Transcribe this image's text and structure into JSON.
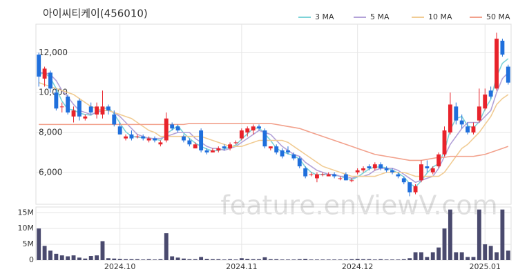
{
  "chart_data": {
    "type": "candlestick",
    "title": "아이씨티케이(456010)",
    "watermark": "feature.enViewV.com",
    "up_color": "#e8232b",
    "down_color": "#1f6fdc",
    "categories": [
      null,
      null,
      null,
      null,
      null,
      null,
      null,
      null,
      null,
      null,
      null,
      null,
      null,
      null,
      "2024.10",
      null,
      null,
      null,
      null,
      null,
      null,
      null,
      null,
      null,
      null,
      null,
      null,
      null,
      null,
      null,
      null,
      null,
      null,
      null,
      null,
      "2024.11",
      null,
      null,
      null,
      null,
      null,
      null,
      null,
      null,
      null,
      null,
      null,
      null,
      null,
      null,
      null,
      null,
      null,
      null,
      null,
      "2024.12",
      null,
      null,
      null,
      null,
      null,
      null,
      null,
      null,
      null,
      null,
      null,
      null,
      null,
      null,
      null,
      null,
      null,
      null,
      null,
      null,
      null,
      "2025.01",
      null,
      null,
      null,
      null
    ],
    "open": [
      11900,
      10700,
      11000,
      10000,
      9300,
      9800,
      8800,
      9600,
      8700,
      9300,
      8900,
      8900,
      9300,
      8900,
      8300,
      7700,
      7900,
      7800,
      7800,
      7600,
      7700,
      7400,
      7600,
      8400,
      8300,
      7800,
      7600,
      7200,
      8100,
      7100,
      7000,
      7100,
      7300,
      7200,
      7500,
      7700,
      8000,
      8100,
      8300,
      8100,
      7200,
      7300,
      7100,
      7100,
      6900,
      6700,
      6200,
      5900,
      5700,
      5900,
      5800,
      5900,
      5700,
      5900,
      5600,
      6000,
      6100,
      6300,
      6200,
      6400,
      6200,
      6100,
      5900,
      5700,
      5500,
      5000,
      5600,
      6300,
      6000,
      6300,
      6900,
      8000,
      9300,
      8600,
      8300,
      8000,
      8600,
      9200,
      10100,
      10200,
      12600,
      11300
    ],
    "high": [
      12000,
      11300,
      11100,
      10200,
      9500,
      9900,
      9300,
      9700,
      8900,
      9500,
      9500,
      10100,
      9400,
      9100,
      8500,
      7900,
      8100,
      7900,
      7900,
      7800,
      7800,
      7600,
      9000,
      8500,
      8400,
      7900,
      7700,
      7500,
      8200,
      7200,
      7200,
      7300,
      7400,
      7500,
      7600,
      8200,
      8300,
      8400,
      8400,
      8200,
      7300,
      7400,
      7200,
      7300,
      7000,
      6800,
      6300,
      6000,
      6000,
      6000,
      6000,
      6000,
      5800,
      6000,
      5700,
      6200,
      6300,
      6400,
      6500,
      6500,
      6300,
      6200,
      6000,
      5800,
      5500,
      5400,
      6600,
      6600,
      6300,
      7000,
      8300,
      10000,
      9500,
      8900,
      8500,
      8500,
      10200,
      10200,
      10300,
      13000,
      12700,
      11400
    ],
    "low": [
      10300,
      10300,
      10000,
      9100,
      9000,
      8900,
      8500,
      8600,
      8600,
      8900,
      8700,
      8700,
      8900,
      8300,
      7900,
      7600,
      7600,
      7700,
      7600,
      7500,
      7500,
      7300,
      7500,
      8100,
      8000,
      7500,
      7300,
      7200,
      7000,
      6900,
      7000,
      7000,
      7100,
      7100,
      7400,
      7600,
      7800,
      7900,
      8100,
      7200,
      7100,
      6900,
      6700,
      6900,
      6600,
      6200,
      5700,
      5800,
      5500,
      5800,
      5800,
      5700,
      5600,
      5600,
      5500,
      5900,
      6000,
      6100,
      6100,
      6100,
      6000,
      5900,
      5700,
      5400,
      4800,
      4900,
      5500,
      6000,
      5900,
      6200,
      6800,
      7900,
      8400,
      8200,
      7900,
      7900,
      8500,
      9100,
      9700,
      10100,
      11800,
      10400
    ],
    "close": [
      10800,
      11200,
      10200,
      9200,
      9300,
      9000,
      9100,
      8800,
      8800,
      9000,
      9300,
      9300,
      9100,
      8400,
      7900,
      7800,
      7700,
      7800,
      7700,
      7700,
      7600,
      7500,
      8700,
      8200,
      8100,
      7600,
      7400,
      7400,
      7100,
      7000,
      7100,
      7200,
      7200,
      7400,
      7500,
      8100,
      8200,
      8300,
      8200,
      7300,
      7300,
      7000,
      6800,
      7000,
      6700,
      6300,
      5800,
      5900,
      5900,
      5900,
      5900,
      5800,
      5700,
      5600,
      5600,
      6100,
      6200,
      6200,
      6400,
      6200,
      6100,
      6000,
      5800,
      5500,
      5000,
      5300,
      6400,
      6200,
      6200,
      6900,
      8100,
      9400,
      8600,
      8400,
      8000,
      8300,
      9300,
      9900,
      9800,
      12700,
      11900,
      10500
    ],
    "ylim": [
      4400,
      13430
    ],
    "yticks": [
      {
        "value": 6000,
        "label": "6,000"
      },
      {
        "value": 8000,
        "label": "8,000"
      },
      {
        "value": 10000,
        "label": "10,000"
      },
      {
        "value": 12000,
        "label": "12,000"
      }
    ],
    "series": [
      {
        "name": "3 MA",
        "color": "#7dd3d8",
        "values": [
          10900,
          11000,
          10733,
          10200,
          9567,
          9167,
          9133,
          8967,
          8900,
          8867,
          9033,
          9200,
          9233,
          8933,
          8467,
          8033,
          7800,
          7767,
          7733,
          7733,
          7667,
          7600,
          7933,
          8133,
          8333,
          7967,
          7700,
          7467,
          7300,
          7167,
          7067,
          7100,
          7167,
          7267,
          7367,
          7667,
          7933,
          8200,
          8233,
          7933,
          7600,
          7200,
          7033,
          6933,
          6833,
          6667,
          6267,
          6000,
          5867,
          5900,
          5900,
          5867,
          5800,
          5700,
          5633,
          5767,
          5967,
          6167,
          6267,
          6267,
          6233,
          6100,
          5967,
          5767,
          5433,
          5267,
          5567,
          5967,
          6267,
          6433,
          7067,
          8133,
          8700,
          8800,
          8333,
          8233,
          8533,
          9167,
          9667,
          10800,
          11467,
          11700
        ]
      },
      {
        "name": "5 MA",
        "color": "#b3a2d8",
        "values": [
          11000,
          11000,
          10900,
          10600,
          10100,
          9800,
          9400,
          9100,
          9000,
          8900,
          9000,
          9100,
          9100,
          9000,
          8800,
          8500,
          8200,
          7900,
          7800,
          7700,
          7700,
          7700,
          7800,
          7900,
          8000,
          8000,
          8000,
          7700,
          7500,
          7300,
          7200,
          7200,
          7100,
          7200,
          7300,
          7500,
          7700,
          7900,
          8100,
          8000,
          7900,
          7600,
          7300,
          7100,
          6900,
          6800,
          6500,
          6300,
          6100,
          6000,
          5900,
          5900,
          5800,
          5800,
          5700,
          5800,
          5800,
          5900,
          6100,
          6200,
          6200,
          6200,
          6100,
          5900,
          5700,
          5500,
          5600,
          5700,
          5800,
          6200,
          6800,
          7400,
          7800,
          8200,
          8500,
          8500,
          8500,
          8800,
          9100,
          10000,
          10700,
          11000
        ]
      },
      {
        "name": "10 MA",
        "color": "#f1cc94",
        "values": [
          10500,
          10400,
          10300,
          10200,
          10100,
          10000,
          9900,
          9700,
          9500,
          9300,
          9200,
          9100,
          9100,
          9000,
          8900,
          8800,
          8700,
          8500,
          8300,
          8100,
          8000,
          7800,
          7800,
          7800,
          7800,
          7800,
          7800,
          7800,
          7800,
          7700,
          7600,
          7500,
          7400,
          7300,
          7300,
          7300,
          7400,
          7500,
          7600,
          7600,
          7600,
          7600,
          7600,
          7500,
          7300,
          7100,
          6900,
          6700,
          6500,
          6300,
          6200,
          6100,
          6000,
          5900,
          5800,
          5800,
          5800,
          5800,
          5800,
          5900,
          6000,
          6000,
          6000,
          6000,
          5900,
          5800,
          5800,
          5800,
          5800,
          5800,
          6000,
          6400,
          6800,
          7200,
          7400,
          7700,
          8000,
          8400,
          8800,
          9400,
          9700,
          9900
        ]
      },
      {
        "name": "50 MA",
        "color": "#f2a18c",
        "values": [
          8400,
          8400,
          8400,
          8400,
          8400,
          8400,
          8400,
          8400,
          8400,
          8400,
          8400,
          8400,
          8400,
          8400,
          8400,
          8400,
          8400,
          8400,
          8400,
          8400,
          8400,
          8400,
          8400,
          8400,
          8400,
          8400,
          8450,
          8450,
          8450,
          8450,
          8450,
          8450,
          8450,
          8450,
          8450,
          8450,
          8450,
          8450,
          8450,
          8450,
          8450,
          8400,
          8350,
          8300,
          8250,
          8200,
          8100,
          8000,
          7900,
          7800,
          7700,
          7600,
          7500,
          7400,
          7300,
          7200,
          7100,
          7000,
          6900,
          6850,
          6800,
          6750,
          6700,
          6650,
          6600,
          6600,
          6600,
          6650,
          6700,
          6750,
          6750,
          6800,
          6800,
          6800,
          6800,
          6800,
          6850,
          6900,
          7000,
          7100,
          7200,
          7300
        ]
      }
    ],
    "volume": {
      "color": "#4a4a6e",
      "ylim": [
        0,
        16800000
      ],
      "yticks": [
        0,
        {
          "value": 5000000,
          "label": "5M"
        },
        {
          "value": 10000000,
          "label": "10M"
        },
        {
          "value": 15000000,
          "label": "15M"
        }
      ],
      "values": [
        10000000,
        4500000,
        3000000,
        2000000,
        1500000,
        1200000,
        1500000,
        800000,
        500000,
        1300000,
        1500000,
        6000000,
        600000,
        500000,
        400000,
        300000,
        300000,
        300000,
        200000,
        300000,
        200000,
        300000,
        8500000,
        1200000,
        800000,
        500000,
        300000,
        300000,
        1000000,
        400000,
        300000,
        300000,
        200000,
        300000,
        200000,
        600000,
        400000,
        300000,
        300000,
        900000,
        300000,
        300000,
        200000,
        200000,
        200000,
        300000,
        400000,
        200000,
        200000,
        200000,
        200000,
        200000,
        200000,
        200000,
        300000,
        400000,
        300000,
        300000,
        200000,
        300000,
        200000,
        200000,
        200000,
        300000,
        600000,
        2500000,
        2500000,
        1000000,
        2500000,
        4000000,
        10000000,
        16000000,
        2500000,
        2500000,
        1000000,
        1000000,
        16000000,
        5000000,
        4500000,
        2500000,
        16000000,
        3000000
      ]
    }
  }
}
